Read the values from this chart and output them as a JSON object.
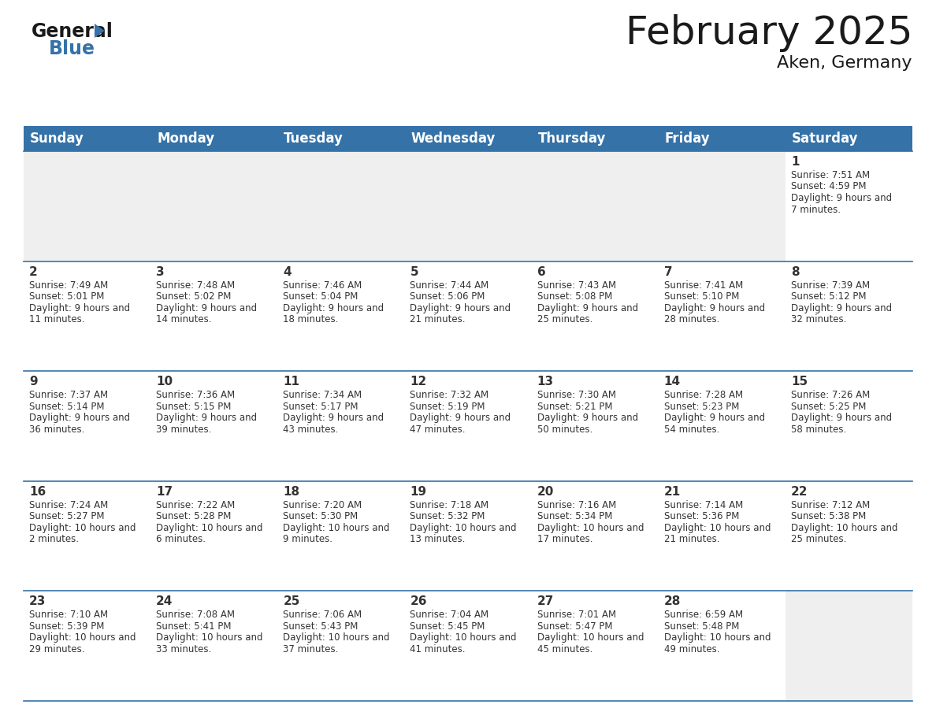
{
  "title": "February 2025",
  "subtitle": "Aken, Germany",
  "header_color": "#3572a8",
  "header_text_color": "#ffffff",
  "day_names": [
    "Sunday",
    "Monday",
    "Tuesday",
    "Wednesday",
    "Thursday",
    "Friday",
    "Saturday"
  ],
  "bg_color": "#ffffff",
  "empty_cell_color": "#efefef",
  "cell_border_color": "#3572a8",
  "text_color": "#333333",
  "days": [
    {
      "day": 1,
      "col": 6,
      "row": 0,
      "sunrise": "7:51 AM",
      "sunset": "4:59 PM",
      "daylight": "9 hours and 7 minutes"
    },
    {
      "day": 2,
      "col": 0,
      "row": 1,
      "sunrise": "7:49 AM",
      "sunset": "5:01 PM",
      "daylight": "9 hours and 11 minutes"
    },
    {
      "day": 3,
      "col": 1,
      "row": 1,
      "sunrise": "7:48 AM",
      "sunset": "5:02 PM",
      "daylight": "9 hours and 14 minutes"
    },
    {
      "day": 4,
      "col": 2,
      "row": 1,
      "sunrise": "7:46 AM",
      "sunset": "5:04 PM",
      "daylight": "9 hours and 18 minutes"
    },
    {
      "day": 5,
      "col": 3,
      "row": 1,
      "sunrise": "7:44 AM",
      "sunset": "5:06 PM",
      "daylight": "9 hours and 21 minutes"
    },
    {
      "day": 6,
      "col": 4,
      "row": 1,
      "sunrise": "7:43 AM",
      "sunset": "5:08 PM",
      "daylight": "9 hours and 25 minutes"
    },
    {
      "day": 7,
      "col": 5,
      "row": 1,
      "sunrise": "7:41 AM",
      "sunset": "5:10 PM",
      "daylight": "9 hours and 28 minutes"
    },
    {
      "day": 8,
      "col": 6,
      "row": 1,
      "sunrise": "7:39 AM",
      "sunset": "5:12 PM",
      "daylight": "9 hours and 32 minutes"
    },
    {
      "day": 9,
      "col": 0,
      "row": 2,
      "sunrise": "7:37 AM",
      "sunset": "5:14 PM",
      "daylight": "9 hours and 36 minutes"
    },
    {
      "day": 10,
      "col": 1,
      "row": 2,
      "sunrise": "7:36 AM",
      "sunset": "5:15 PM",
      "daylight": "9 hours and 39 minutes"
    },
    {
      "day": 11,
      "col": 2,
      "row": 2,
      "sunrise": "7:34 AM",
      "sunset": "5:17 PM",
      "daylight": "9 hours and 43 minutes"
    },
    {
      "day": 12,
      "col": 3,
      "row": 2,
      "sunrise": "7:32 AM",
      "sunset": "5:19 PM",
      "daylight": "9 hours and 47 minutes"
    },
    {
      "day": 13,
      "col": 4,
      "row": 2,
      "sunrise": "7:30 AM",
      "sunset": "5:21 PM",
      "daylight": "9 hours and 50 minutes"
    },
    {
      "day": 14,
      "col": 5,
      "row": 2,
      "sunrise": "7:28 AM",
      "sunset": "5:23 PM",
      "daylight": "9 hours and 54 minutes"
    },
    {
      "day": 15,
      "col": 6,
      "row": 2,
      "sunrise": "7:26 AM",
      "sunset": "5:25 PM",
      "daylight": "9 hours and 58 minutes"
    },
    {
      "day": 16,
      "col": 0,
      "row": 3,
      "sunrise": "7:24 AM",
      "sunset": "5:27 PM",
      "daylight": "10 hours and 2 minutes"
    },
    {
      "day": 17,
      "col": 1,
      "row": 3,
      "sunrise": "7:22 AM",
      "sunset": "5:28 PM",
      "daylight": "10 hours and 6 minutes"
    },
    {
      "day": 18,
      "col": 2,
      "row": 3,
      "sunrise": "7:20 AM",
      "sunset": "5:30 PM",
      "daylight": "10 hours and 9 minutes"
    },
    {
      "day": 19,
      "col": 3,
      "row": 3,
      "sunrise": "7:18 AM",
      "sunset": "5:32 PM",
      "daylight": "10 hours and 13 minutes"
    },
    {
      "day": 20,
      "col": 4,
      "row": 3,
      "sunrise": "7:16 AM",
      "sunset": "5:34 PM",
      "daylight": "10 hours and 17 minutes"
    },
    {
      "day": 21,
      "col": 5,
      "row": 3,
      "sunrise": "7:14 AM",
      "sunset": "5:36 PM",
      "daylight": "10 hours and 21 minutes"
    },
    {
      "day": 22,
      "col": 6,
      "row": 3,
      "sunrise": "7:12 AM",
      "sunset": "5:38 PM",
      "daylight": "10 hours and 25 minutes"
    },
    {
      "day": 23,
      "col": 0,
      "row": 4,
      "sunrise": "7:10 AM",
      "sunset": "5:39 PM",
      "daylight": "10 hours and 29 minutes"
    },
    {
      "day": 24,
      "col": 1,
      "row": 4,
      "sunrise": "7:08 AM",
      "sunset": "5:41 PM",
      "daylight": "10 hours and 33 minutes"
    },
    {
      "day": 25,
      "col": 2,
      "row": 4,
      "sunrise": "7:06 AM",
      "sunset": "5:43 PM",
      "daylight": "10 hours and 37 minutes"
    },
    {
      "day": 26,
      "col": 3,
      "row": 4,
      "sunrise": "7:04 AM",
      "sunset": "5:45 PM",
      "daylight": "10 hours and 41 minutes"
    },
    {
      "day": 27,
      "col": 4,
      "row": 4,
      "sunrise": "7:01 AM",
      "sunset": "5:47 PM",
      "daylight": "10 hours and 45 minutes"
    },
    {
      "day": 28,
      "col": 5,
      "row": 4,
      "sunrise": "6:59 AM",
      "sunset": "5:48 PM",
      "daylight": "10 hours and 49 minutes"
    }
  ],
  "logo_color_general": "#1a1a1a",
  "logo_color_blue": "#3572a8",
  "logo_triangle_color": "#3572a8",
  "title_fontsize": 36,
  "subtitle_fontsize": 16,
  "header_fontsize": 12,
  "daynum_fontsize": 11,
  "info_fontsize": 8.5
}
